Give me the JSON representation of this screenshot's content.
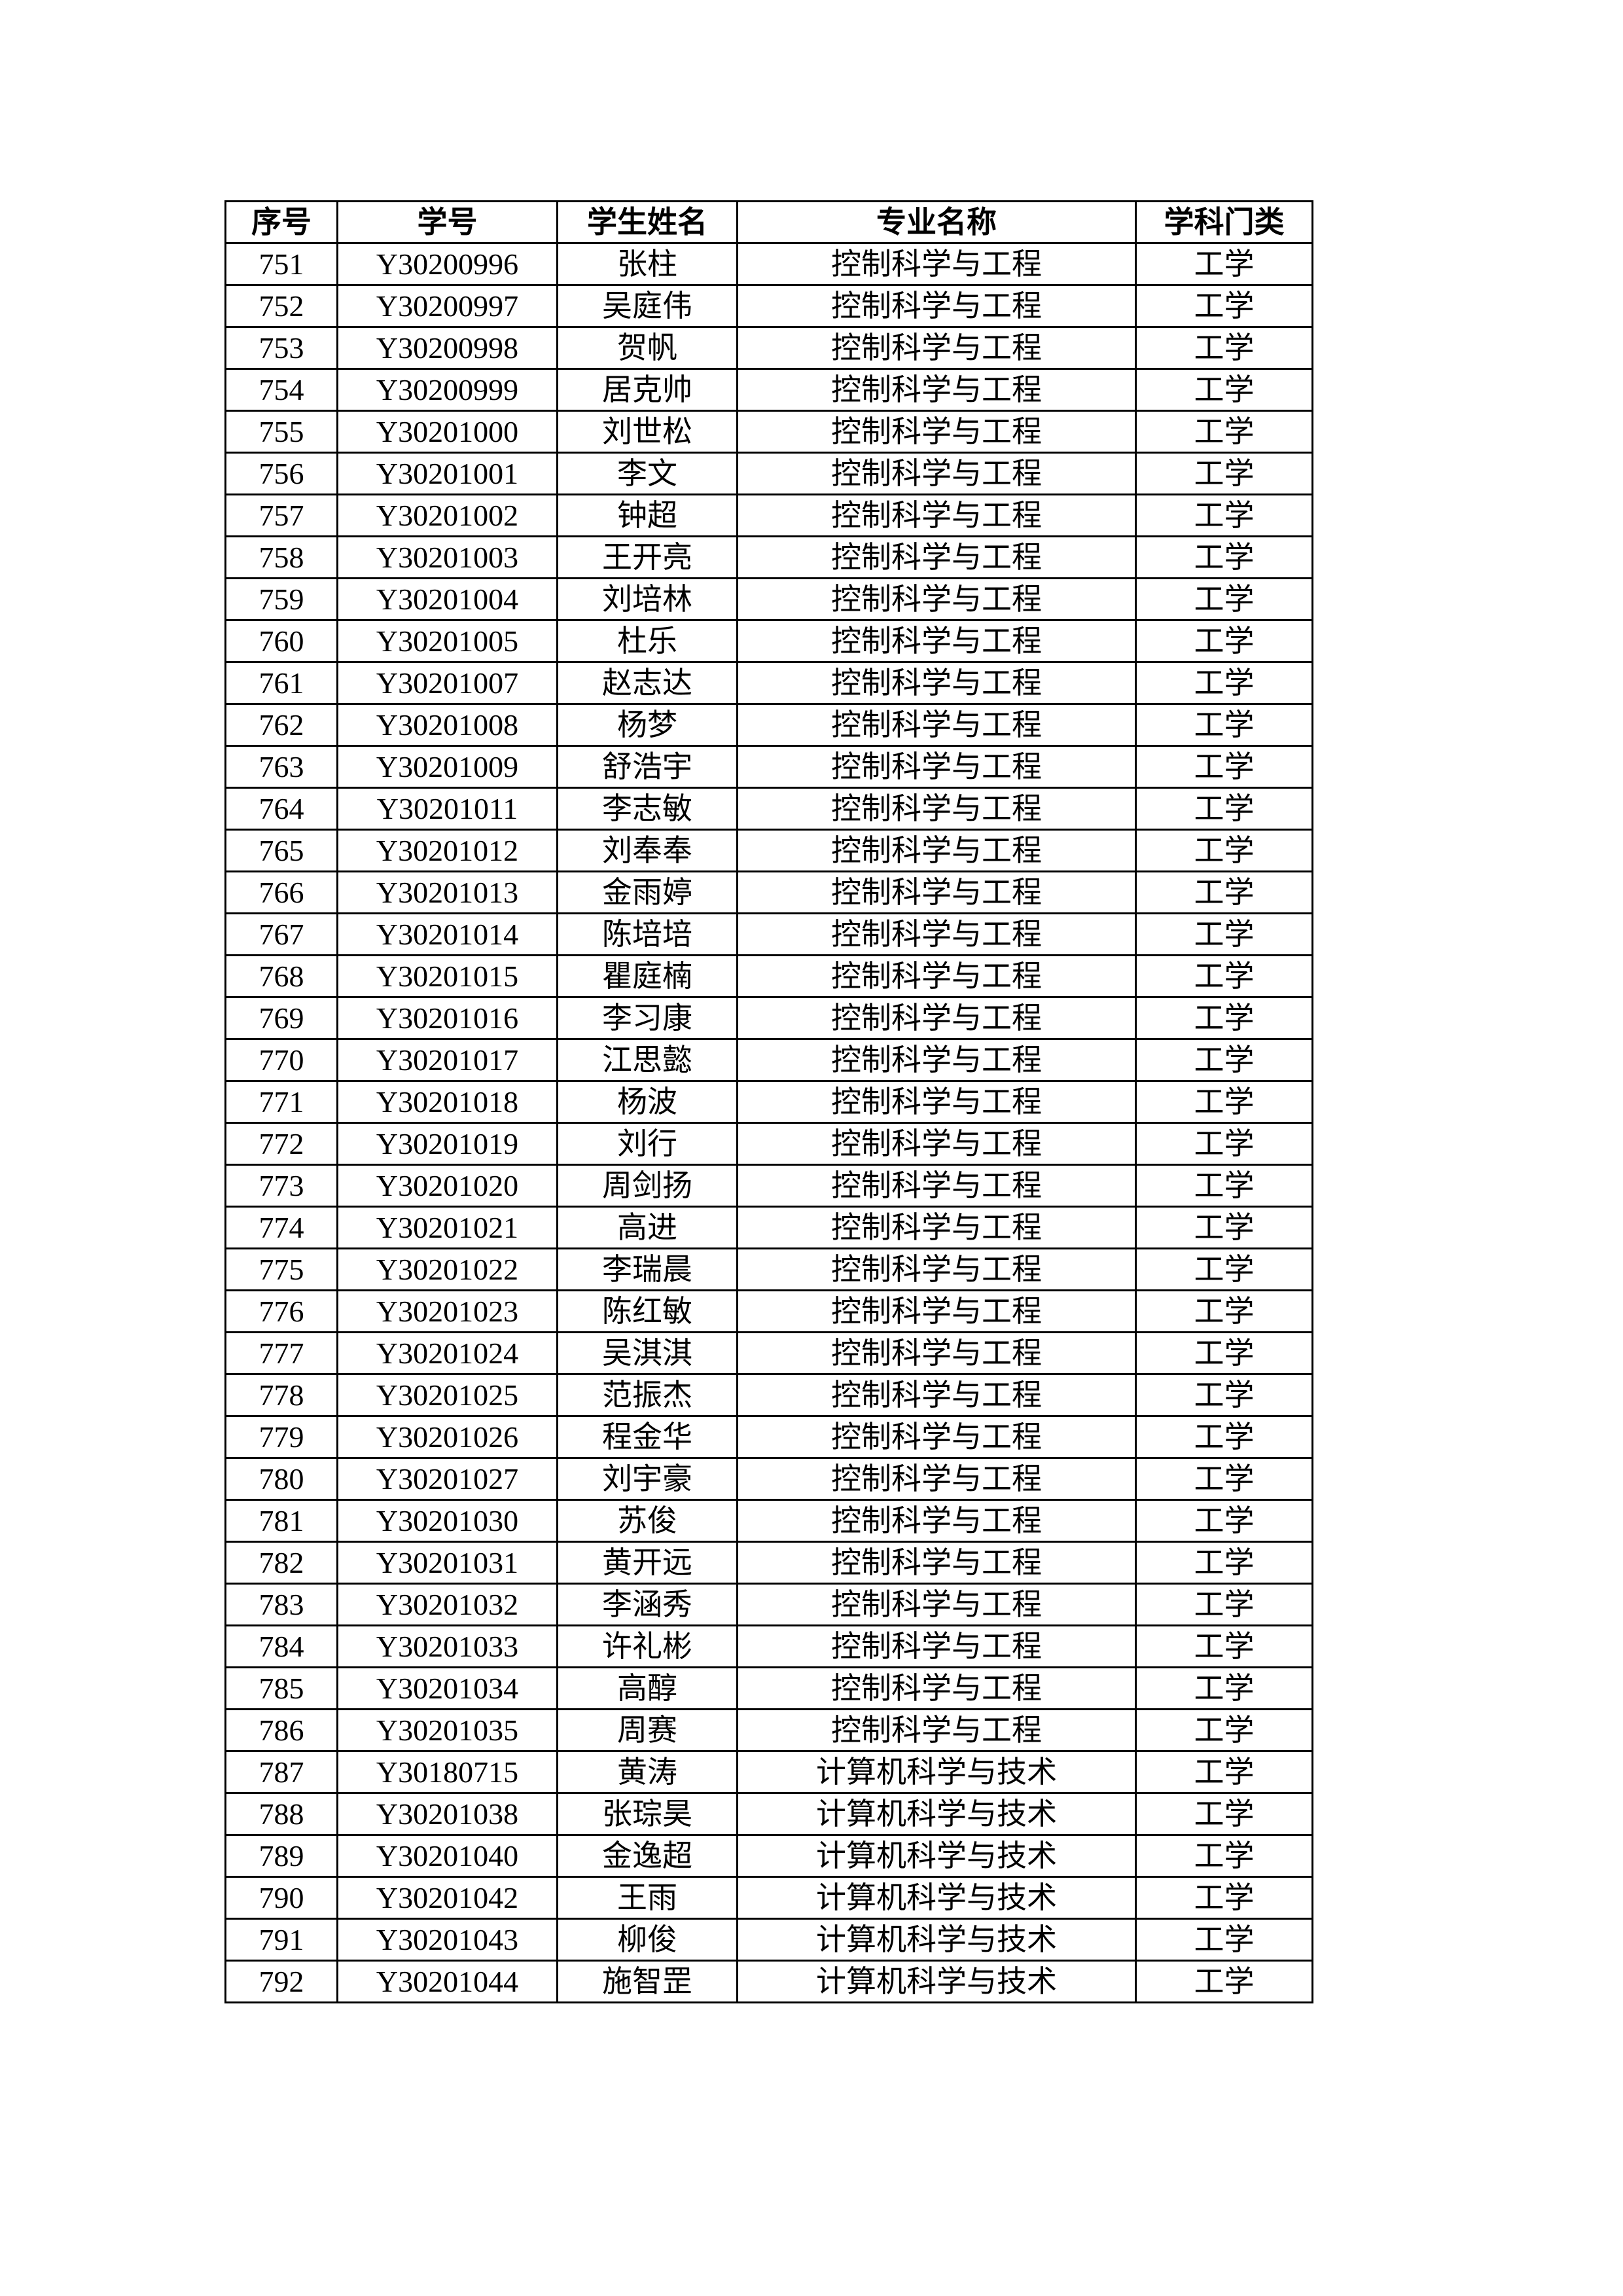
{
  "headers": [
    "序号",
    "学号",
    "学生姓名",
    "专业名称",
    "学科门类"
  ],
  "rows": [
    [
      "751",
      "Y30200996",
      "张柱",
      "控制科学与工程",
      "工学"
    ],
    [
      "752",
      "Y30200997",
      "吴庭伟",
      "控制科学与工程",
      "工学"
    ],
    [
      "753",
      "Y30200998",
      "贺帆",
      "控制科学与工程",
      "工学"
    ],
    [
      "754",
      "Y30200999",
      "居克帅",
      "控制科学与工程",
      "工学"
    ],
    [
      "755",
      "Y30201000",
      "刘世松",
      "控制科学与工程",
      "工学"
    ],
    [
      "756",
      "Y30201001",
      "李文",
      "控制科学与工程",
      "工学"
    ],
    [
      "757",
      "Y30201002",
      "钟超",
      "控制科学与工程",
      "工学"
    ],
    [
      "758",
      "Y30201003",
      "王开亮",
      "控制科学与工程",
      "工学"
    ],
    [
      "759",
      "Y30201004",
      "刘培林",
      "控制科学与工程",
      "工学"
    ],
    [
      "760",
      "Y30201005",
      "杜乐",
      "控制科学与工程",
      "工学"
    ],
    [
      "761",
      "Y30201007",
      "赵志达",
      "控制科学与工程",
      "工学"
    ],
    [
      "762",
      "Y30201008",
      "杨梦",
      "控制科学与工程",
      "工学"
    ],
    [
      "763",
      "Y30201009",
      "舒浩宇",
      "控制科学与工程",
      "工学"
    ],
    [
      "764",
      "Y30201011",
      "李志敏",
      "控制科学与工程",
      "工学"
    ],
    [
      "765",
      "Y30201012",
      "刘奉奉",
      "控制科学与工程",
      "工学"
    ],
    [
      "766",
      "Y30201013",
      "金雨婷",
      "控制科学与工程",
      "工学"
    ],
    [
      "767",
      "Y30201014",
      "陈培培",
      "控制科学与工程",
      "工学"
    ],
    [
      "768",
      "Y30201015",
      "瞿庭楠",
      "控制科学与工程",
      "工学"
    ],
    [
      "769",
      "Y30201016",
      "李习康",
      "控制科学与工程",
      "工学"
    ],
    [
      "770",
      "Y30201017",
      "江思懿",
      "控制科学与工程",
      "工学"
    ],
    [
      "771",
      "Y30201018",
      "杨波",
      "控制科学与工程",
      "工学"
    ],
    [
      "772",
      "Y30201019",
      "刘行",
      "控制科学与工程",
      "工学"
    ],
    [
      "773",
      "Y30201020",
      "周剑扬",
      "控制科学与工程",
      "工学"
    ],
    [
      "774",
      "Y30201021",
      "高进",
      "控制科学与工程",
      "工学"
    ],
    [
      "775",
      "Y30201022",
      "李瑞晨",
      "控制科学与工程",
      "工学"
    ],
    [
      "776",
      "Y30201023",
      "陈红敏",
      "控制科学与工程",
      "工学"
    ],
    [
      "777",
      "Y30201024",
      "吴淇淇",
      "控制科学与工程",
      "工学"
    ],
    [
      "778",
      "Y30201025",
      "范振杰",
      "控制科学与工程",
      "工学"
    ],
    [
      "779",
      "Y30201026",
      "程金华",
      "控制科学与工程",
      "工学"
    ],
    [
      "780",
      "Y30201027",
      "刘宇豪",
      "控制科学与工程",
      "工学"
    ],
    [
      "781",
      "Y30201030",
      "苏俊",
      "控制科学与工程",
      "工学"
    ],
    [
      "782",
      "Y30201031",
      "黄开远",
      "控制科学与工程",
      "工学"
    ],
    [
      "783",
      "Y30201032",
      "李涵秀",
      "控制科学与工程",
      "工学"
    ],
    [
      "784",
      "Y30201033",
      "许礼彬",
      "控制科学与工程",
      "工学"
    ],
    [
      "785",
      "Y30201034",
      "高醇",
      "控制科学与工程",
      "工学"
    ],
    [
      "786",
      "Y30201035",
      "周赛",
      "控制科学与工程",
      "工学"
    ],
    [
      "787",
      "Y30180715",
      "黄涛",
      "计算机科学与技术",
      "工学"
    ],
    [
      "788",
      "Y30201038",
      "张琮昊",
      "计算机科学与技术",
      "工学"
    ],
    [
      "789",
      "Y30201040",
      "金逸超",
      "计算机科学与技术",
      "工学"
    ],
    [
      "790",
      "Y30201042",
      "王雨",
      "计算机科学与技术",
      "工学"
    ],
    [
      "791",
      "Y30201043",
      "柳俊",
      "计算机科学与技术",
      "工学"
    ],
    [
      "792",
      "Y30201044",
      "施智罡",
      "计算机科学与技术",
      "工学"
    ]
  ]
}
